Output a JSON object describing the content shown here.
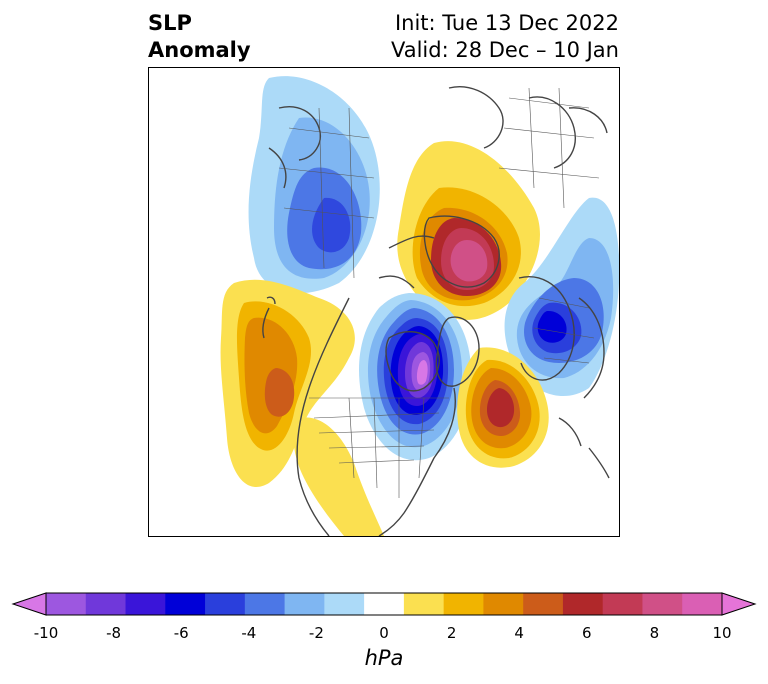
{
  "title": {
    "variable_line1": "SLP",
    "variable_line2": "Anomaly",
    "init_line": "Init: Tue 13 Dec 2022",
    "valid_line": "Valid: 28 Dec – 10 Jan"
  },
  "colorbar": {
    "unit": "hPa",
    "tick_labels": [
      "-10",
      "-8",
      "-6",
      "-4",
      "-2",
      "0",
      "2",
      "4",
      "6",
      "8",
      "10"
    ],
    "colors": [
      "#d877e6",
      "#9d57e0",
      "#7038da",
      "#3a15d9",
      "#0000d8",
      "#2a3fdc",
      "#4c77e6",
      "#7fb6f2",
      "#acdaf8",
      "#ffffff",
      "#fbe050",
      "#f1b400",
      "#e08900",
      "#cc5c1a",
      "#b0282a",
      "#c23a55",
      "#d05087",
      "#da5fb4",
      "#e574d8"
    ]
  }
}
